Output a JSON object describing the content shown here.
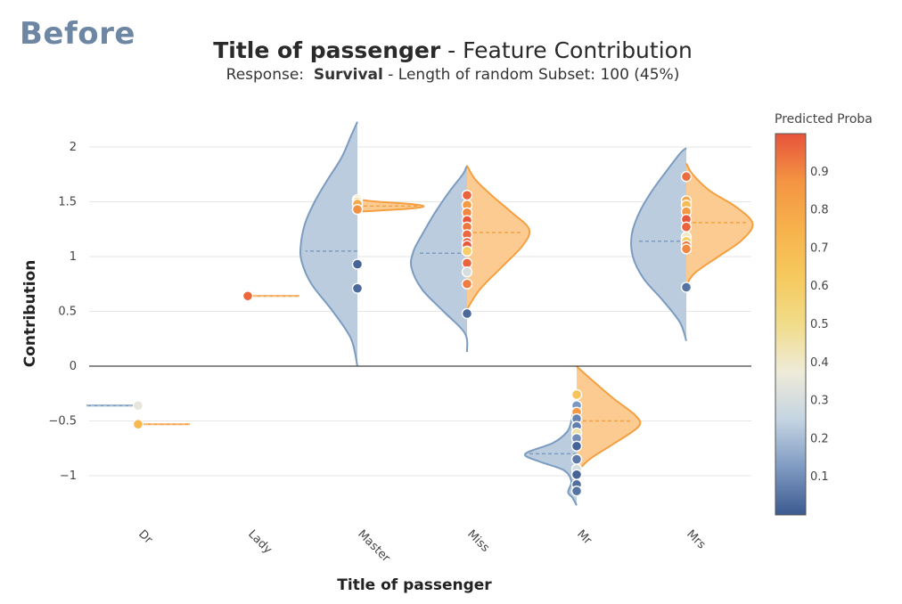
{
  "corner_label": "Before",
  "title": {
    "feature": "Title of passenger",
    "rest": " - Feature Contribution"
  },
  "subtitle": {
    "prefix": "Response:  ",
    "response": "Survival",
    "rest": " - Length of random Subset: 100 (45%)"
  },
  "colors": {
    "class_left_fill": "#b8c9dd",
    "class_left_line": "#7b9cc0",
    "class_right_fill": "#fcc88c",
    "class_right_line": "#f4a042",
    "colorscale": [
      "#3b5a8f",
      "#7f9ac2",
      "#c4d4e2",
      "#eeebd8",
      "#f1dc8a",
      "#f6c95d",
      "#f7b24c",
      "#f39442",
      "#e7533c"
    ]
  },
  "chart_data": {
    "type": "violin",
    "xlabel": "Title of passenger",
    "ylabel": "Contribution",
    "categories": [
      "Dr",
      "Lady",
      "Master",
      "Miss",
      "Mr",
      "Mrs"
    ],
    "ylim": [
      -1.3,
      2.25
    ],
    "yticks": [
      -1,
      -0.5,
      0,
      0.5,
      1,
      1.5,
      2
    ],
    "ytick_labels": [
      "−1",
      "−0.5",
      "0",
      "0.5",
      "1",
      "1.5",
      "2"
    ],
    "grid": true,
    "colorbar": {
      "title": "Predicted Proba",
      "ticks": [
        0.1,
        0.2,
        0.3,
        0.4,
        0.5,
        0.6,
        0.7,
        0.8,
        0.9
      ],
      "tick_labels": [
        "0.1",
        "0.2",
        "0.3",
        "0.4",
        "0.5",
        "0.6",
        "0.7",
        "0.8",
        "0.9"
      ],
      "range": [
        0,
        1
      ]
    },
    "violins": [
      {
        "category": "Dr",
        "side": "left",
        "kind": "line",
        "median": -0.36
      },
      {
        "category": "Dr",
        "side": "right",
        "kind": "line",
        "median": -0.53
      },
      {
        "category": "Lady",
        "side": "right",
        "kind": "line",
        "median": 0.64
      },
      {
        "category": "Master",
        "side": "left",
        "median": 1.05,
        "profile": [
          [
            0.0,
            0.0
          ],
          [
            0.25,
            0.06
          ],
          [
            0.5,
            0.23
          ],
          [
            0.75,
            0.43
          ],
          [
            0.95,
            0.52
          ],
          [
            1.1,
            0.53
          ],
          [
            1.3,
            0.49
          ],
          [
            1.5,
            0.4
          ],
          [
            1.7,
            0.28
          ],
          [
            1.9,
            0.15
          ],
          [
            2.1,
            0.06
          ],
          [
            2.23,
            0.0
          ]
        ]
      },
      {
        "category": "Master",
        "side": "right",
        "median": 1.46,
        "profile": [
          [
            1.41,
            0.0
          ],
          [
            1.42,
            0.2
          ],
          [
            1.44,
            0.52
          ],
          [
            1.46,
            0.62
          ],
          [
            1.48,
            0.5
          ],
          [
            1.5,
            0.2
          ],
          [
            1.52,
            0.0
          ]
        ]
      },
      {
        "category": "Miss",
        "side": "left",
        "median": 1.03,
        "profile": [
          [
            0.13,
            0.0
          ],
          [
            0.3,
            0.02
          ],
          [
            0.5,
            0.22
          ],
          [
            0.7,
            0.42
          ],
          [
            0.9,
            0.52
          ],
          [
            1.05,
            0.5
          ],
          [
            1.2,
            0.42
          ],
          [
            1.4,
            0.3
          ],
          [
            1.6,
            0.16
          ],
          [
            1.75,
            0.04
          ],
          [
            1.83,
            0.0
          ]
        ]
      },
      {
        "category": "Miss",
        "side": "right",
        "median": 1.22,
        "profile": [
          [
            0.52,
            0.0
          ],
          [
            0.7,
            0.12
          ],
          [
            0.9,
            0.32
          ],
          [
            1.1,
            0.52
          ],
          [
            1.25,
            0.58
          ],
          [
            1.4,
            0.42
          ],
          [
            1.55,
            0.24
          ],
          [
            1.7,
            0.08
          ],
          [
            1.83,
            0.0
          ]
        ]
      },
      {
        "category": "Mr",
        "side": "left",
        "median": -0.8,
        "profile": [
          [
            -1.27,
            0.0
          ],
          [
            -1.2,
            0.04
          ],
          [
            -1.15,
            0.08
          ],
          [
            -1.05,
            0.05
          ],
          [
            -0.95,
            0.12
          ],
          [
            -0.87,
            0.35
          ],
          [
            -0.8,
            0.48
          ],
          [
            -0.7,
            0.22
          ],
          [
            -0.6,
            0.09
          ],
          [
            -0.5,
            0.05
          ],
          [
            -0.4,
            0.03
          ],
          [
            -0.33,
            0.0
          ]
        ]
      },
      {
        "category": "Mr",
        "side": "right",
        "median": -0.5,
        "profile": [
          [
            -0.97,
            0.0
          ],
          [
            -0.85,
            0.12
          ],
          [
            -0.7,
            0.36
          ],
          [
            -0.55,
            0.58
          ],
          [
            -0.45,
            0.55
          ],
          [
            -0.3,
            0.35
          ],
          [
            -0.15,
            0.17
          ],
          [
            -0.02,
            0.02
          ],
          [
            0.0,
            0.0
          ]
        ]
      },
      {
        "category": "Mrs",
        "side": "left",
        "median": 1.14,
        "profile": [
          [
            0.23,
            0.0
          ],
          [
            0.4,
            0.06
          ],
          [
            0.6,
            0.22
          ],
          [
            0.8,
            0.4
          ],
          [
            1.0,
            0.5
          ],
          [
            1.2,
            0.51
          ],
          [
            1.4,
            0.44
          ],
          [
            1.6,
            0.32
          ],
          [
            1.8,
            0.17
          ],
          [
            1.95,
            0.05
          ],
          [
            1.99,
            0.0
          ]
        ]
      },
      {
        "category": "Mrs",
        "side": "right",
        "median": 1.31,
        "profile": [
          [
            0.74,
            0.0
          ],
          [
            0.85,
            0.08
          ],
          [
            1.0,
            0.3
          ],
          [
            1.15,
            0.52
          ],
          [
            1.3,
            0.62
          ],
          [
            1.45,
            0.47
          ],
          [
            1.6,
            0.22
          ],
          [
            1.75,
            0.06
          ],
          [
            1.85,
            0.0
          ]
        ]
      }
    ],
    "points": [
      {
        "category": "Dr",
        "y": -0.36,
        "proba": 0.35
      },
      {
        "category": "Dr",
        "y": -0.53,
        "proba": 0.72
      },
      {
        "category": "Lady",
        "y": 0.64,
        "proba": 0.96
      },
      {
        "category": "Master",
        "y": 1.52,
        "proba": 0.45
      },
      {
        "category": "Master",
        "y": 1.5,
        "proba": 0.55
      },
      {
        "category": "Master",
        "y": 1.48,
        "proba": 0.78
      },
      {
        "category": "Master",
        "y": 1.43,
        "proba": 0.88
      },
      {
        "category": "Master",
        "y": 0.93,
        "proba": 0.02
      },
      {
        "category": "Master",
        "y": 0.71,
        "proba": 0.03
      },
      {
        "category": "Miss",
        "y": 1.56,
        "proba": 0.97
      },
      {
        "category": "Miss",
        "y": 1.47,
        "proba": 0.85
      },
      {
        "category": "Miss",
        "y": 1.4,
        "proba": 0.9
      },
      {
        "category": "Miss",
        "y": 1.33,
        "proba": 0.99
      },
      {
        "category": "Miss",
        "y": 1.27,
        "proba": 0.93
      },
      {
        "category": "Miss",
        "y": 1.2,
        "proba": 0.96
      },
      {
        "category": "Miss",
        "y": 1.13,
        "proba": 0.98
      },
      {
        "category": "Miss",
        "y": 1.1,
        "proba": 0.99
      },
      {
        "category": "Miss",
        "y": 1.05,
        "proba": 0.6
      },
      {
        "category": "Miss",
        "y": 0.94,
        "proba": 0.97
      },
      {
        "category": "Miss",
        "y": 0.86,
        "proba": 0.3
      },
      {
        "category": "Miss",
        "y": 0.75,
        "proba": 0.92
      },
      {
        "category": "Miss",
        "y": 0.48,
        "proba": 0.03
      },
      {
        "category": "Mr",
        "y": -0.26,
        "proba": 0.65
      },
      {
        "category": "Mr",
        "y": -0.36,
        "proba": 0.12
      },
      {
        "category": "Mr",
        "y": -0.42,
        "proba": 0.85
      },
      {
        "category": "Mr",
        "y": -0.48,
        "proba": 0.08
      },
      {
        "category": "Mr",
        "y": -0.55,
        "proba": 0.07
      },
      {
        "category": "Mr",
        "y": -0.61,
        "proba": 0.45
      },
      {
        "category": "Mr",
        "y": -0.66,
        "proba": 0.1
      },
      {
        "category": "Mr",
        "y": -0.73,
        "proba": 0.02
      },
      {
        "category": "Mr",
        "y": -0.85,
        "proba": 0.06
      },
      {
        "category": "Mr",
        "y": -0.94,
        "proba": 0.3
      },
      {
        "category": "Mr",
        "y": -0.99,
        "proba": 0.02
      },
      {
        "category": "Mr",
        "y": -1.08,
        "proba": 0.04
      },
      {
        "category": "Mr",
        "y": -1.14,
        "proba": 0.05
      },
      {
        "category": "Mrs",
        "y": 1.73,
        "proba": 0.95
      },
      {
        "category": "Mrs",
        "y": 1.51,
        "proba": 0.8
      },
      {
        "category": "Mrs",
        "y": 1.47,
        "proba": 0.7
      },
      {
        "category": "Mrs",
        "y": 1.41,
        "proba": 0.85
      },
      {
        "category": "Mrs",
        "y": 1.34,
        "proba": 0.99
      },
      {
        "category": "Mrs",
        "y": 1.27,
        "proba": 0.97
      },
      {
        "category": "Mrs",
        "y": 1.18,
        "proba": 0.4
      },
      {
        "category": "Mrs",
        "y": 1.14,
        "proba": 0.6
      },
      {
        "category": "Mrs",
        "y": 1.1,
        "proba": 0.93
      },
      {
        "category": "Mrs",
        "y": 1.07,
        "proba": 0.9
      },
      {
        "category": "Mrs",
        "y": 0.72,
        "proba": 0.05
      }
    ]
  }
}
